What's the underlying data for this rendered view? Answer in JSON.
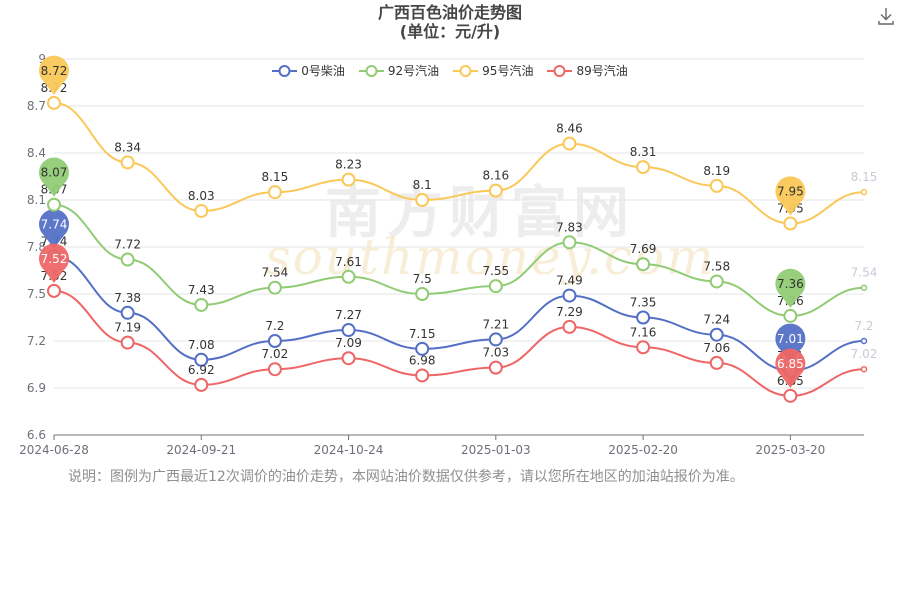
{
  "title": "广西百色油价走势图",
  "subtitle": "(单位：元/升)",
  "note": "说明：图例为广西最近12次调价的油价走势，本网站油价数据仅供参考，请以您所在地区的加油站报价为准。",
  "watermark": {
    "cn": "南方财富网",
    "en": "southmoney.com"
  },
  "chart_data": {
    "type": "line",
    "ylim": [
      6.6,
      9.0
    ],
    "yticks": [
      6.6,
      6.9,
      7.2,
      7.5,
      7.8,
      8.1,
      8.4,
      8.7,
      9.0
    ],
    "x_tick_labels": [
      "2024-06-28",
      "2024-09-21",
      "2024-10-24",
      "2025-01-03",
      "2025-02-20",
      "2025-03-20"
    ],
    "x_tick_index": [
      0,
      2,
      4,
      6,
      8,
      10
    ],
    "grid": "horizontal",
    "legend_position": "top-center",
    "series": [
      {
        "name": "0号柴油",
        "color": "#5470c6",
        "values": [
          7.74,
          7.38,
          7.08,
          7.2,
          7.27,
          7.15,
          7.21,
          7.49,
          7.35,
          7.24,
          7.01,
          7.2
        ],
        "max_pin": 7.74,
        "min_pin": 7.01
      },
      {
        "name": "92号汽油",
        "color": "#91cc75",
        "values": [
          8.07,
          7.72,
          7.43,
          7.54,
          7.61,
          7.5,
          7.55,
          7.83,
          7.69,
          7.58,
          7.36,
          7.54
        ],
        "max_pin": 8.07,
        "min_pin": 7.36
      },
      {
        "name": "95号汽油",
        "color": "#fac858",
        "values": [
          8.72,
          8.34,
          8.03,
          8.15,
          8.23,
          8.1,
          8.16,
          8.46,
          8.31,
          8.19,
          7.95,
          8.15
        ],
        "max_pin": 8.72,
        "min_pin": 7.95
      },
      {
        "name": "89号汽油",
        "color": "#ee6666",
        "values": [
          7.52,
          7.19,
          6.92,
          7.02,
          7.09,
          6.98,
          7.03,
          7.29,
          7.16,
          7.06,
          6.85,
          7.02
        ],
        "max_pin": 7.52,
        "min_pin": 6.85
      }
    ]
  }
}
